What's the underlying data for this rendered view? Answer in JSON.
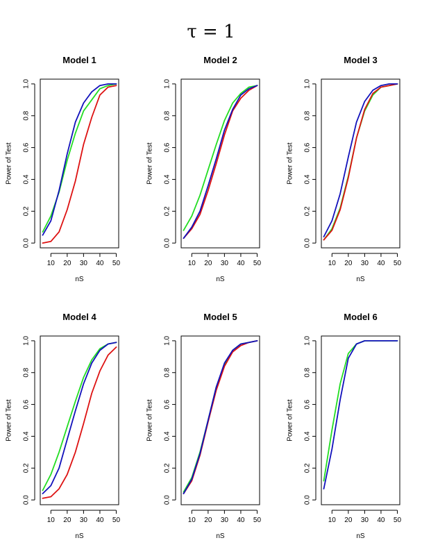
{
  "figure": {
    "title": "τ = 1"
  },
  "colors": {
    "green": "#22dd22",
    "red": "#dd1111",
    "blue": "#1111bb"
  },
  "chart_data": [
    {
      "type": "line",
      "title": "Model 1",
      "xlabel": "nS",
      "ylabel": "Power of Test",
      "x": [
        5,
        10,
        15,
        20,
        25,
        30,
        35,
        40,
        45,
        50
      ],
      "xticks": [
        10,
        20,
        30,
        40,
        50
      ],
      "yticks": [
        0.0,
        0.2,
        0.4,
        0.6,
        0.8,
        1.0
      ],
      "xlim": [
        3.5,
        51.5
      ],
      "ylim": [
        -0.03,
        1.03
      ],
      "grid": false,
      "series": [
        {
          "color": "green",
          "values": [
            0.07,
            0.17,
            0.32,
            0.52,
            0.69,
            0.83,
            0.9,
            0.97,
            0.99,
            1.0
          ]
        },
        {
          "color": "red",
          "values": [
            0.0,
            0.01,
            0.07,
            0.21,
            0.39,
            0.62,
            0.79,
            0.93,
            0.98,
            0.99
          ]
        },
        {
          "color": "blue",
          "values": [
            0.05,
            0.14,
            0.33,
            0.56,
            0.76,
            0.88,
            0.95,
            0.99,
            1.0,
            1.0
          ]
        }
      ]
    },
    {
      "type": "line",
      "title": "Model 2",
      "xlabel": "nS",
      "ylabel": "Power of Test",
      "x": [
        5,
        10,
        15,
        20,
        25,
        30,
        35,
        40,
        45,
        50
      ],
      "xticks": [
        10,
        20,
        30,
        40,
        50
      ],
      "yticks": [
        0.0,
        0.2,
        0.4,
        0.6,
        0.8,
        1.0
      ],
      "xlim": [
        3.5,
        51.5
      ],
      "ylim": [
        -0.03,
        1.03
      ],
      "grid": false,
      "series": [
        {
          "color": "green",
          "values": [
            0.08,
            0.17,
            0.3,
            0.46,
            0.62,
            0.77,
            0.88,
            0.94,
            0.98,
            0.99
          ]
        },
        {
          "color": "red",
          "values": [
            0.03,
            0.09,
            0.18,
            0.33,
            0.5,
            0.68,
            0.83,
            0.91,
            0.96,
            0.99
          ]
        },
        {
          "color": "blue",
          "values": [
            0.03,
            0.1,
            0.2,
            0.36,
            0.53,
            0.71,
            0.84,
            0.93,
            0.97,
            0.99
          ]
        }
      ]
    },
    {
      "type": "line",
      "title": "Model 3",
      "xlabel": "nS",
      "ylabel": "Power of Test",
      "x": [
        5,
        10,
        15,
        20,
        25,
        30,
        35,
        40,
        45,
        50
      ],
      "xticks": [
        10,
        20,
        30,
        40,
        50
      ],
      "yticks": [
        0.0,
        0.2,
        0.4,
        0.6,
        0.8,
        1.0
      ],
      "xlim": [
        3.5,
        51.5
      ],
      "ylim": [
        -0.03,
        1.03
      ],
      "grid": false,
      "series": [
        {
          "color": "green",
          "values": [
            0.02,
            0.09,
            0.22,
            0.42,
            0.66,
            0.83,
            0.93,
            0.98,
            0.99,
            1.0
          ]
        },
        {
          "color": "red",
          "values": [
            0.02,
            0.08,
            0.21,
            0.41,
            0.66,
            0.84,
            0.94,
            0.98,
            0.99,
            1.0
          ]
        },
        {
          "color": "blue",
          "values": [
            0.04,
            0.14,
            0.31,
            0.54,
            0.76,
            0.89,
            0.96,
            0.99,
            1.0,
            1.0
          ]
        }
      ]
    },
    {
      "type": "line",
      "title": "Model 4",
      "xlabel": "nS",
      "ylabel": "Power of Test",
      "x": [
        5,
        10,
        15,
        20,
        25,
        30,
        35,
        40,
        45,
        50
      ],
      "xticks": [
        10,
        20,
        30,
        40,
        50
      ],
      "yticks": [
        0.0,
        0.2,
        0.4,
        0.6,
        0.8,
        1.0
      ],
      "xlim": [
        3.5,
        51.5
      ],
      "ylim": [
        -0.03,
        1.03
      ],
      "grid": false,
      "series": [
        {
          "color": "green",
          "values": [
            0.06,
            0.16,
            0.3,
            0.46,
            0.62,
            0.77,
            0.88,
            0.95,
            0.98,
            0.99
          ]
        },
        {
          "color": "red",
          "values": [
            0.01,
            0.02,
            0.07,
            0.16,
            0.3,
            0.48,
            0.67,
            0.81,
            0.91,
            0.96
          ]
        },
        {
          "color": "blue",
          "values": [
            0.04,
            0.09,
            0.2,
            0.38,
            0.56,
            0.73,
            0.86,
            0.94,
            0.98,
            0.99
          ]
        }
      ]
    },
    {
      "type": "line",
      "title": "Model 5",
      "xlabel": "nS",
      "ylabel": "Power of Test",
      "x": [
        5,
        10,
        15,
        20,
        25,
        30,
        35,
        40,
        45,
        50
      ],
      "xticks": [
        10,
        20,
        30,
        40,
        50
      ],
      "yticks": [
        0.0,
        0.2,
        0.4,
        0.6,
        0.8,
        1.0
      ],
      "xlim": [
        3.5,
        51.5
      ],
      "ylim": [
        -0.03,
        1.03
      ],
      "grid": false,
      "series": [
        {
          "color": "green",
          "values": [
            0.05,
            0.14,
            0.3,
            0.5,
            0.71,
            0.85,
            0.94,
            0.98,
            0.99,
            1.0
          ]
        },
        {
          "color": "red",
          "values": [
            0.04,
            0.12,
            0.28,
            0.49,
            0.69,
            0.84,
            0.93,
            0.97,
            0.99,
            1.0
          ]
        },
        {
          "color": "blue",
          "values": [
            0.04,
            0.13,
            0.29,
            0.5,
            0.71,
            0.86,
            0.94,
            0.98,
            0.99,
            1.0
          ]
        }
      ]
    },
    {
      "type": "line",
      "title": "Model 6",
      "xlabel": "nS",
      "ylabel": "Power of Test",
      "x": [
        5,
        10,
        15,
        20,
        25,
        30,
        35,
        40,
        45,
        50
      ],
      "xticks": [
        10,
        20,
        30,
        40,
        50
      ],
      "yticks": [
        0.0,
        0.2,
        0.4,
        0.6,
        0.8,
        1.0
      ],
      "xlim": [
        3.5,
        51.5
      ],
      "ylim": [
        -0.03,
        1.03
      ],
      "grid": false,
      "series": [
        {
          "color": "green",
          "values": [
            0.12,
            0.44,
            0.73,
            0.92,
            0.98,
            1.0,
            1.0,
            1.0,
            1.0,
            1.0
          ]
        },
        {
          "color": "blue",
          "values": [
            0.07,
            0.32,
            0.63,
            0.89,
            0.98,
            1.0,
            1.0,
            1.0,
            1.0,
            1.0
          ]
        }
      ]
    }
  ]
}
